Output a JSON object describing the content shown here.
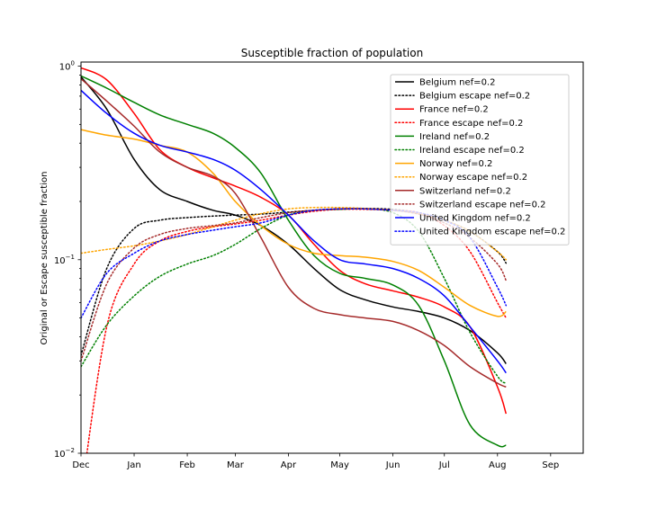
{
  "chart_data": {
    "type": "line",
    "title": "Susceptible fraction of population",
    "ylabel": "Original or Escape susceptible fraction",
    "xlabel": "",
    "yscale": "log",
    "ylim": [
      0.01,
      1.05
    ],
    "xlim": [
      "2020-12-01",
      "2021-09-20"
    ],
    "x_ticks": [
      {
        "date": "2020-12-01",
        "label": "Dec"
      },
      {
        "date": "2021-01-01",
        "label": "Jan"
      },
      {
        "date": "2021-02-01",
        "label": "Feb"
      },
      {
        "date": "2021-03-01",
        "label": "Mar"
      },
      {
        "date": "2021-04-01",
        "label": "Apr"
      },
      {
        "date": "2021-05-01",
        "label": "May"
      },
      {
        "date": "2021-06-01",
        "label": "Jun"
      },
      {
        "date": "2021-07-01",
        "label": "Jul"
      },
      {
        "date": "2021-08-01",
        "label": "Aug"
      },
      {
        "date": "2021-09-01",
        "label": "Sep"
      }
    ],
    "y_ticks": [
      {
        "value": 0.01,
        "label": "10",
        "exp": "−2"
      },
      {
        "value": 0.1,
        "label": "10",
        "exp": "−1"
      },
      {
        "value": 1,
        "label": "10",
        "exp": "0"
      }
    ],
    "legend_position": "top-right",
    "x": [
      "2020-12-01",
      "2020-12-16",
      "2021-01-01",
      "2021-01-16",
      "2021-02-01",
      "2021-02-16",
      "2021-03-01",
      "2021-03-16",
      "2021-04-01",
      "2021-04-16",
      "2021-05-01",
      "2021-05-16",
      "2021-06-01",
      "2021-06-16",
      "2021-07-01",
      "2021-07-16",
      "2021-08-01",
      "2021-08-06"
    ],
    "series": [
      {
        "name": "Belgium nef=0.2",
        "color": "#000000",
        "dash": "solid",
        "values": [
          0.88,
          0.6,
          0.33,
          0.23,
          0.2,
          0.18,
          0.17,
          0.15,
          0.12,
          0.09,
          0.07,
          0.062,
          0.057,
          0.054,
          0.05,
          0.043,
          0.033,
          0.029
        ]
      },
      {
        "name": "Belgium escape nef=0.2",
        "color": "#000000",
        "dash": "dotted",
        "values": [
          0.032,
          0.09,
          0.145,
          0.16,
          0.165,
          0.168,
          0.17,
          0.172,
          0.176,
          0.18,
          0.183,
          0.184,
          0.182,
          0.175,
          0.16,
          0.14,
          0.11,
          0.096
        ]
      },
      {
        "name": "France nef=0.2",
        "color": "#ff0000",
        "dash": "solid",
        "values": [
          0.98,
          0.85,
          0.57,
          0.37,
          0.3,
          0.265,
          0.24,
          0.21,
          0.17,
          0.12,
          0.088,
          0.075,
          0.069,
          0.064,
          0.057,
          0.045,
          0.022,
          0.016
        ]
      },
      {
        "name": "France escape nef=0.2",
        "color": "#ff0000",
        "dash": "dotted",
        "values": [
          0.006,
          0.045,
          0.095,
          0.125,
          0.14,
          0.148,
          0.153,
          0.16,
          0.17,
          0.178,
          0.182,
          0.182,
          0.18,
          0.175,
          0.15,
          0.11,
          0.06,
          0.05
        ]
      },
      {
        "name": "Ireland nef=0.2",
        "color": "#008000",
        "dash": "solid",
        "values": [
          0.89,
          0.77,
          0.65,
          0.56,
          0.5,
          0.45,
          0.38,
          0.28,
          0.16,
          0.105,
          0.085,
          0.08,
          0.074,
          0.058,
          0.03,
          0.014,
          0.011,
          0.011
        ]
      },
      {
        "name": "Ireland escape nef=0.2",
        "color": "#008000",
        "dash": "dotted",
        "values": [
          0.028,
          0.046,
          0.065,
          0.082,
          0.095,
          0.105,
          0.12,
          0.145,
          0.17,
          0.18,
          0.182,
          0.183,
          0.175,
          0.14,
          0.08,
          0.042,
          0.025,
          0.023
        ]
      },
      {
        "name": "Norway nef=0.2",
        "color": "#ffa500",
        "dash": "solid",
        "values": [
          0.47,
          0.44,
          0.42,
          0.39,
          0.36,
          0.28,
          0.2,
          0.15,
          0.12,
          0.108,
          0.105,
          0.103,
          0.098,
          0.088,
          0.072,
          0.058,
          0.051,
          0.054
        ]
      },
      {
        "name": "Norway escape nef=0.2",
        "color": "#ffa500",
        "dash": "dotted",
        "values": [
          0.108,
          0.113,
          0.118,
          0.125,
          0.135,
          0.148,
          0.16,
          0.173,
          0.183,
          0.186,
          0.186,
          0.184,
          0.18,
          0.173,
          0.16,
          0.14,
          0.11,
          0.1
        ]
      },
      {
        "name": "Switzerland nef=0.2",
        "color": "#a52a2a",
        "dash": "solid",
        "values": [
          0.86,
          0.66,
          0.49,
          0.36,
          0.3,
          0.27,
          0.22,
          0.13,
          0.072,
          0.056,
          0.052,
          0.05,
          0.048,
          0.043,
          0.036,
          0.028,
          0.023,
          0.022
        ]
      },
      {
        "name": "Switzerland escape nef=0.2",
        "color": "#a52a2a",
        "dash": "dotted",
        "values": [
          0.03,
          0.075,
          0.115,
          0.135,
          0.145,
          0.15,
          0.155,
          0.165,
          0.175,
          0.18,
          0.183,
          0.183,
          0.18,
          0.172,
          0.155,
          0.13,
          0.095,
          0.078
        ]
      },
      {
        "name": "United Kingdom nef=0.2",
        "color": "#0000ff",
        "dash": "solid",
        "values": [
          0.75,
          0.57,
          0.45,
          0.39,
          0.36,
          0.33,
          0.29,
          0.23,
          0.17,
          0.125,
          0.1,
          0.095,
          0.09,
          0.08,
          0.065,
          0.045,
          0.03,
          0.026
        ]
      },
      {
        "name": "United Kingdom escape nef=0.2",
        "color": "#0000ff",
        "dash": "dotted",
        "values": [
          0.05,
          0.085,
          0.108,
          0.125,
          0.135,
          0.142,
          0.148,
          0.155,
          0.17,
          0.18,
          0.183,
          0.183,
          0.18,
          0.175,
          0.16,
          0.13,
          0.072,
          0.058
        ]
      }
    ]
  }
}
